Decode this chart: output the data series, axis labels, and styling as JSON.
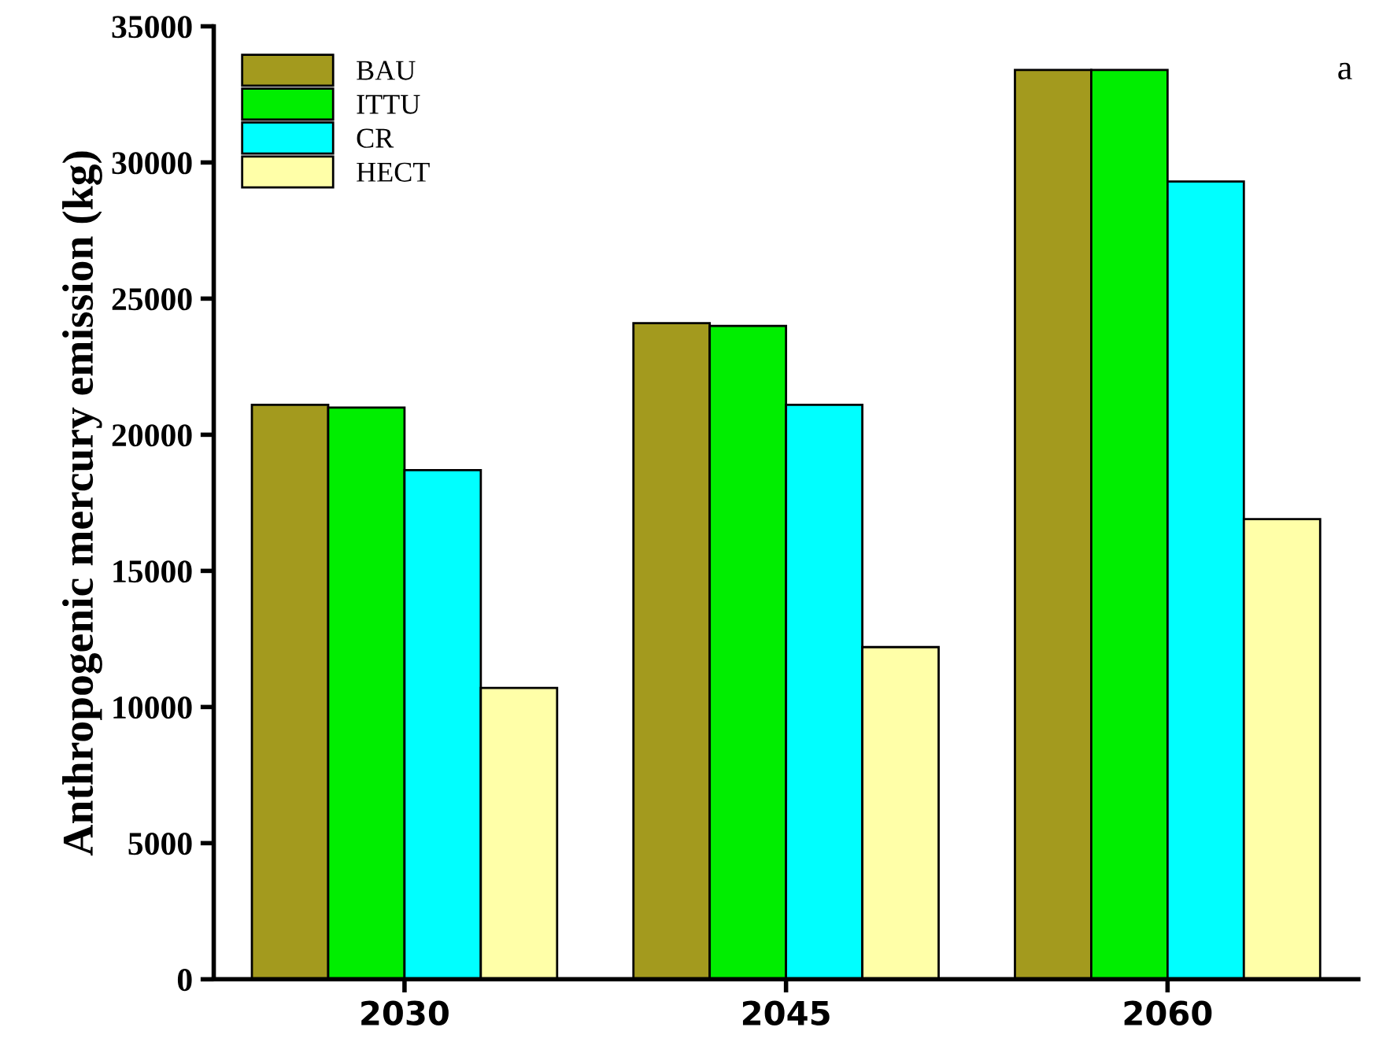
{
  "chart_data": {
    "type": "bar",
    "ylabel": "Anthropogenic mercury emission (kg)",
    "categories": [
      "2030",
      "2045",
      "2060"
    ],
    "series": [
      {
        "name": "BAU",
        "color": "#a39a1e",
        "values": [
          21100,
          24100,
          33400
        ]
      },
      {
        "name": "ITTU",
        "color": "#00ee00",
        "values": [
          21000,
          24000,
          33400
        ]
      },
      {
        "name": "CR",
        "color": "#00ffff",
        "values": [
          18700,
          21100,
          29300
        ]
      },
      {
        "name": "HECT",
        "color": "#ffffa8",
        "values": [
          10700,
          12200,
          16900
        ]
      }
    ],
    "ylim": [
      0,
      35000
    ],
    "yticks": [
      0,
      5000,
      10000,
      15000,
      20000,
      25000,
      30000,
      35000
    ],
    "annotations": [
      "a"
    ],
    "legend": "top left",
    "grid": false
  }
}
